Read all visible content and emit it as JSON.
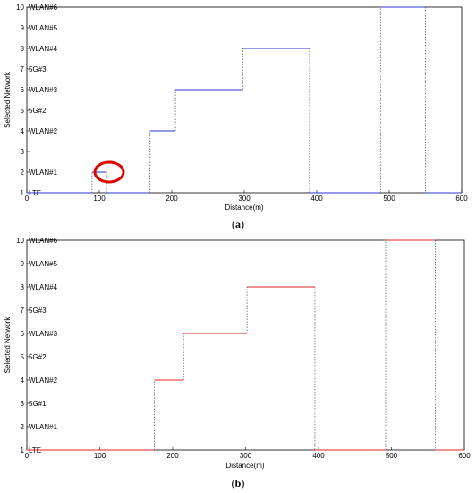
{
  "chart_data": [
    {
      "type": "line",
      "step": true,
      "panel_label": "a",
      "xlabel": "Distance(m)",
      "ylabel": "Selected Network",
      "xlim": [
        0,
        600
      ],
      "ylim": [
        1,
        10
      ],
      "x_ticks": [
        "0",
        "100",
        "200",
        "300",
        "400",
        "500",
        "600"
      ],
      "y_ticks": [
        "1",
        "2",
        "3",
        "4",
        "5",
        "6",
        "7",
        "8",
        "9",
        "10"
      ],
      "network_labels": [
        "LTE",
        "WLAN#1",
        "WLAN#2",
        "5G#2",
        "WLAN#3",
        "5G#3",
        "WLAN#4",
        "WLAN#5",
        "WLAN#6"
      ],
      "network_levels": [
        1,
        2,
        4,
        5,
        6,
        7,
        8,
        9,
        10
      ],
      "line_color": "#3030d0",
      "highlight": {
        "x": 100,
        "y": 2,
        "color": "#e00000"
      },
      "series": [
        {
          "segments": [
            {
              "x0": 0,
              "x1": 90,
              "y": 1
            },
            {
              "x0": 90,
              "x1": 110,
              "y": 2
            },
            {
              "x0": 110,
              "x1": 170,
              "y": 1
            },
            {
              "x0": 170,
              "x1": 205,
              "y": 4
            },
            {
              "x0": 205,
              "x1": 298,
              "y": 6
            },
            {
              "x0": 298,
              "x1": 390,
              "y": 8
            },
            {
              "x0": 390,
              "x1": 488,
              "y": 1
            },
            {
              "x0": 488,
              "x1": 550,
              "y": 10
            },
            {
              "x0": 550,
              "x1": 600,
              "y": 1
            }
          ]
        }
      ]
    },
    {
      "type": "line",
      "step": true,
      "panel_label": "b",
      "xlabel": "Distance(m)",
      "ylabel": "Selected Network",
      "xlim": [
        0,
        600
      ],
      "ylim": [
        1,
        10
      ],
      "x_ticks": [
        "0",
        "100",
        "200",
        "300",
        "400",
        "500",
        "600"
      ],
      "y_ticks": [
        "1",
        "2",
        "3",
        "4",
        "5",
        "6",
        "7",
        "8",
        "9",
        "10"
      ],
      "network_labels": [
        "LTE",
        "WLAN#1",
        "5G#1",
        "WLAN#2",
        "5G#2",
        "WLAN#3",
        "5G#3",
        "WLAN#4",
        "WLAN#5",
        "WLAN#6"
      ],
      "network_levels": [
        1,
        2,
        3,
        4,
        5,
        6,
        7,
        8,
        9,
        10
      ],
      "line_color": "#e02020",
      "series": [
        {
          "segments": [
            {
              "x0": 0,
              "x1": 175,
              "y": 1
            },
            {
              "x0": 175,
              "x1": 215,
              "y": 4
            },
            {
              "x0": 215,
              "x1": 302,
              "y": 6
            },
            {
              "x0": 302,
              "x1": 395,
              "y": 8
            },
            {
              "x0": 395,
              "x1": 492,
              "y": 1
            },
            {
              "x0": 492,
              "x1": 560,
              "y": 10
            },
            {
              "x0": 560,
              "x1": 600,
              "y": 1
            }
          ]
        }
      ]
    }
  ]
}
